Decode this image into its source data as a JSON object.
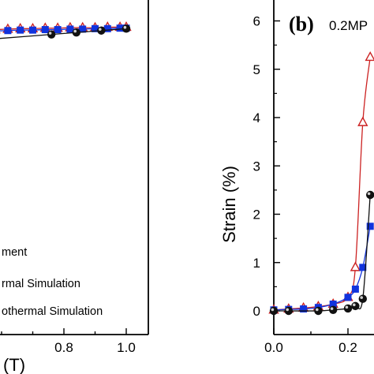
{
  "chart_data": [
    {
      "type": "line",
      "panel": "a",
      "xlabel": "(T)",
      "x_ticks": [
        "0.8",
        "1.0"
      ],
      "legend": [
        "ment",
        "rmal Simulation",
        "othermal Simulation"
      ],
      "series": [
        {
          "color": "#cc2222",
          "marker": "open-triangle",
          "x": [
            0.58,
            0.62,
            0.66,
            0.7,
            0.74,
            0.78,
            0.82,
            0.86,
            0.9,
            0.94,
            0.98,
            1.0
          ],
          "y": [
            5.82,
            5.83,
            5.84,
            5.84,
            5.85,
            5.85,
            5.86,
            5.86,
            5.86,
            5.87,
            5.87,
            5.87
          ]
        },
        {
          "color": "#1133dd",
          "marker": "filled-square",
          "x": [
            0.58,
            0.62,
            0.66,
            0.7,
            0.74,
            0.78,
            0.82,
            0.86,
            0.9,
            0.94,
            0.98,
            1.0
          ],
          "y": [
            5.79,
            5.8,
            5.81,
            5.81,
            5.82,
            5.82,
            5.83,
            5.83,
            5.84,
            5.84,
            5.85,
            5.85
          ]
        },
        {
          "color": "#111111",
          "marker": "filled-circle",
          "x": [
            0.58,
            0.76,
            0.84,
            0.92,
            1.0
          ],
          "y": [
            5.63,
            5.72,
            5.76,
            5.8,
            5.84
          ]
        }
      ]
    },
    {
      "type": "line",
      "panel": "b",
      "panel_label": "(b)",
      "condition": "0.2MP",
      "ylabel": "Strain (%)",
      "xlim": [
        0.0,
        0.28
      ],
      "ylim": [
        0,
        6
      ],
      "x_ticks": [
        "0.0",
        "0.2"
      ],
      "y_ticks": [
        "0",
        "1",
        "2",
        "3",
        "4",
        "5",
        "6"
      ],
      "series": [
        {
          "color": "#cc2222",
          "marker": "open-triangle",
          "x": [
            0.0,
            0.04,
            0.08,
            0.12,
            0.16,
            0.2,
            0.22,
            0.24,
            0.26
          ],
          "y": [
            0.02,
            0.04,
            0.06,
            0.09,
            0.14,
            0.28,
            0.9,
            3.9,
            5.25
          ]
        },
        {
          "color": "#1133dd",
          "marker": "filled-square",
          "x": [
            0.0,
            0.04,
            0.08,
            0.12,
            0.16,
            0.2,
            0.22,
            0.24,
            0.26
          ],
          "y": [
            0.02,
            0.03,
            0.04,
            0.07,
            0.14,
            0.28,
            0.45,
            0.9,
            1.75
          ]
        },
        {
          "color": "#111111",
          "marker": "filled-circle",
          "x": [
            0.0,
            0.04,
            0.12,
            0.16,
            0.2,
            0.22,
            0.24,
            0.26
          ],
          "y": [
            0.0,
            0.0,
            0.0,
            0.02,
            0.05,
            0.1,
            0.25,
            2.4
          ]
        }
      ]
    }
  ]
}
